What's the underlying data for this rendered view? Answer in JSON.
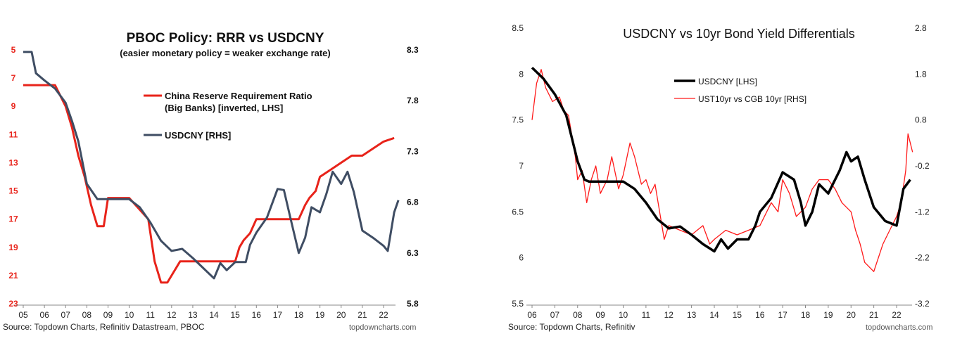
{
  "chart_data": [
    {
      "type": "line",
      "title": "PBOC Policy: RRR vs USDCNY",
      "subtitle": "(easier monetary policy = weaker exchange rate)",
      "left_axis": {
        "ticks": [
          "5",
          "7",
          "9",
          "11",
          "13",
          "15",
          "17",
          "19",
          "21",
          "23"
        ],
        "range": [
          5,
          23
        ],
        "inverted": true,
        "color": "#e8231a"
      },
      "right_axis": {
        "ticks": [
          "8.3",
          "7.8",
          "7.3",
          "6.8",
          "6.3",
          "5.8"
        ],
        "range": [
          5.8,
          8.3
        ],
        "color": "#111111"
      },
      "x_ticks": [
        "05",
        "06",
        "07",
        "08",
        "09",
        "10",
        "11",
        "12",
        "13",
        "14",
        "15",
        "16",
        "17",
        "18",
        "19",
        "20",
        "21",
        "22"
      ],
      "grid": false,
      "legend_position": "top-right",
      "series": [
        {
          "name": "China Reserve Requirement Ratio",
          "name_line2": "(Big Banks) [inverted, LHS]",
          "axis": "left",
          "color": "#e8231a",
          "x": [
            2005.0,
            2006.5,
            2007.0,
            2007.3,
            2007.6,
            2007.9,
            2008.2,
            2008.5,
            2008.8,
            2009.0,
            2010.0,
            2010.9,
            2011.0,
            2011.2,
            2011.5,
            2011.8,
            2012.0,
            2012.4,
            2013.0,
            2014.0,
            2015.0,
            2015.2,
            2015.4,
            2015.7,
            2016.0,
            2017.0,
            2018.0,
            2018.3,
            2018.5,
            2018.8,
            2019.0,
            2019.5,
            2020.0,
            2020.5,
            2021.0,
            2021.5,
            2022.0,
            2022.5
          ],
          "values": [
            7.5,
            7.5,
            9.0,
            10.5,
            12.5,
            14.0,
            16.0,
            17.5,
            17.5,
            15.5,
            15.5,
            17.0,
            18.0,
            20.0,
            21.5,
            21.5,
            21.0,
            20.0,
            20.0,
            20.0,
            20.0,
            19.0,
            18.5,
            18.0,
            17.0,
            17.0,
            17.0,
            16.0,
            15.5,
            15.0,
            14.0,
            13.5,
            13.0,
            12.5,
            12.5,
            12.0,
            11.5,
            11.25
          ]
        },
        {
          "name": "USDCNY [RHS]",
          "axis": "right",
          "color": "#3f4d63",
          "x": [
            2005.0,
            2005.4,
            2005.6,
            2006.0,
            2006.5,
            2007.0,
            2007.3,
            2007.6,
            2008.0,
            2008.5,
            2009.0,
            2010.0,
            2010.5,
            2011.0,
            2011.5,
            2012.0,
            2012.5,
            2013.0,
            2013.5,
            2014.0,
            2014.3,
            2014.6,
            2015.0,
            2015.5,
            2015.7,
            2016.0,
            2016.5,
            2017.0,
            2017.3,
            2017.6,
            2018.0,
            2018.3,
            2018.6,
            2019.0,
            2019.3,
            2019.6,
            2020.0,
            2020.3,
            2020.6,
            2021.0,
            2021.5,
            2022.0,
            2022.2,
            2022.5,
            2022.7
          ],
          "values": [
            8.28,
            8.28,
            8.07,
            8.0,
            7.92,
            7.78,
            7.6,
            7.4,
            6.98,
            6.83,
            6.83,
            6.83,
            6.75,
            6.6,
            6.42,
            6.32,
            6.34,
            6.25,
            6.15,
            6.05,
            6.2,
            6.13,
            6.21,
            6.21,
            6.38,
            6.5,
            6.65,
            6.93,
            6.92,
            6.65,
            6.3,
            6.45,
            6.75,
            6.7,
            6.88,
            7.1,
            6.98,
            7.1,
            6.9,
            6.52,
            6.45,
            6.37,
            6.32,
            6.7,
            6.82
          ]
        }
      ],
      "source": "Source: Topdown Charts, Refinitiv Datastream, PBOC",
      "brand": "topdowncharts.com"
    },
    {
      "type": "line",
      "title": "USDCNY vs 10yr Bond Yield Differentials",
      "left_axis": {
        "ticks": [
          "8.5",
          "8",
          "7.5",
          "7",
          "6.5",
          "6",
          "5.5"
        ],
        "range": [
          5.5,
          8.5
        ]
      },
      "right_axis": {
        "ticks": [
          "2.8",
          "1.8",
          "0.8",
          "-0.2",
          "-1.2",
          "-2.2",
          "-3.2"
        ],
        "range": [
          -3.2,
          2.8
        ]
      },
      "x_ticks": [
        "06",
        "07",
        "08",
        "09",
        "10",
        "11",
        "12",
        "13",
        "14",
        "15",
        "16",
        "17",
        "18",
        "19",
        "20",
        "21",
        "22"
      ],
      "grid": false,
      "legend_position": "top-left",
      "series": [
        {
          "name": "USDCNY [LHS]",
          "axis": "left",
          "color": "#000000",
          "x": [
            2006.0,
            2006.5,
            2007.0,
            2007.5,
            2008.0,
            2008.3,
            2008.5,
            2009.0,
            2010.0,
            2010.5,
            2011.0,
            2011.5,
            2012.0,
            2012.5,
            2013.0,
            2013.5,
            2014.0,
            2014.3,
            2014.6,
            2015.0,
            2015.5,
            2015.8,
            2016.0,
            2016.5,
            2017.0,
            2017.5,
            2017.8,
            2018.0,
            2018.3,
            2018.6,
            2019.0,
            2019.5,
            2019.8,
            2020.0,
            2020.3,
            2020.6,
            2021.0,
            2021.5,
            2022.0,
            2022.3,
            2022.6
          ],
          "values": [
            8.07,
            7.95,
            7.78,
            7.55,
            7.05,
            6.85,
            6.83,
            6.83,
            6.83,
            6.75,
            6.6,
            6.42,
            6.32,
            6.34,
            6.25,
            6.15,
            6.07,
            6.2,
            6.1,
            6.2,
            6.2,
            6.35,
            6.5,
            6.65,
            6.93,
            6.85,
            6.6,
            6.35,
            6.5,
            6.8,
            6.7,
            6.95,
            7.15,
            7.05,
            7.1,
            6.85,
            6.55,
            6.4,
            6.35,
            6.75,
            6.85
          ]
        },
        {
          "name": "UST10yr vs CGB 10yr [RHS]",
          "axis": "right",
          "color": "#ff1a1a",
          "x": [
            2006.0,
            2006.2,
            2006.4,
            2006.6,
            2006.9,
            2007.2,
            2007.4,
            2007.6,
            2007.9,
            2008.0,
            2008.2,
            2008.4,
            2008.6,
            2008.8,
            2009.0,
            2009.3,
            2009.5,
            2009.8,
            2010.0,
            2010.3,
            2010.5,
            2010.8,
            2011.0,
            2011.2,
            2011.4,
            2011.6,
            2011.8,
            2012.0,
            2012.5,
            2013.0,
            2013.5,
            2013.8,
            2014.0,
            2014.5,
            2015.0,
            2015.5,
            2016.0,
            2016.5,
            2016.8,
            2017.0,
            2017.3,
            2017.6,
            2018.0,
            2018.3,
            2018.6,
            2019.0,
            2019.3,
            2019.6,
            2020.0,
            2020.2,
            2020.4,
            2020.6,
            2021.0,
            2021.4,
            2021.8,
            2022.0,
            2022.2,
            2022.4,
            2022.5,
            2022.7
          ],
          "values": [
            0.8,
            1.6,
            1.9,
            1.5,
            1.2,
            1.3,
            1.0,
            0.9,
            0.0,
            -0.5,
            -0.3,
            -1.0,
            -0.5,
            -0.2,
            -0.8,
            -0.5,
            0.0,
            -0.7,
            -0.4,
            0.3,
            0.0,
            -0.6,
            -0.5,
            -0.8,
            -0.6,
            -1.2,
            -1.8,
            -1.5,
            -1.6,
            -1.7,
            -1.5,
            -1.9,
            -1.8,
            -1.6,
            -1.7,
            -1.6,
            -1.5,
            -1.0,
            -1.2,
            -0.5,
            -0.8,
            -1.3,
            -1.1,
            -0.7,
            -0.5,
            -0.5,
            -0.7,
            -1.0,
            -1.2,
            -1.6,
            -1.9,
            -2.3,
            -2.5,
            -1.9,
            -1.5,
            -1.3,
            -1.0,
            -0.3,
            0.5,
            0.1
          ]
        }
      ],
      "source": "Source: Topdown Charts, Refinitiv",
      "brand": "topdowncharts.com"
    }
  ]
}
